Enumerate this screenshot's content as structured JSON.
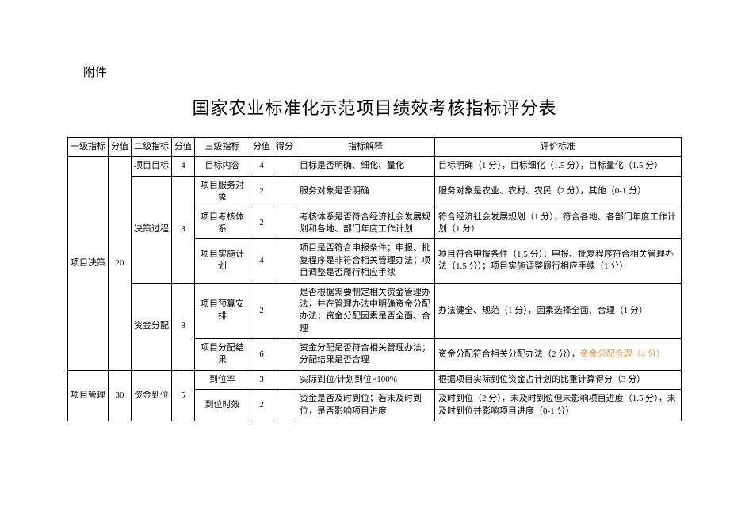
{
  "attachment_label": "附件",
  "title": "国家农业标准化示范项目绩效考核指标评分表",
  "headers": {
    "l1": "一级指标",
    "s1": "分值",
    "l2": "二级指标",
    "s2": "分值",
    "l3": "三级指标",
    "s3": "分值",
    "score": "得分",
    "desc": "指标解释",
    "eval": "评价标准"
  },
  "rows": [
    {
      "l1": "项目决策",
      "s1": "20",
      "l2": "项目目标",
      "s2": "4",
      "l3": "目标内容",
      "s3": "4",
      "desc": "目标是否明确、细化、量化",
      "eval": "目标明确（1 分），目标细化（1.5 分），目标量化（1.5 分）"
    },
    {
      "l2": "决策过程",
      "s2": "8",
      "l3": "项目服务对象",
      "s3": "2",
      "desc": "服务对象是否明确",
      "eval": "服务对象是农业、农村、农民（2 分），其他（0-1 分）"
    },
    {
      "l3": "项目考核体系",
      "s3": "2",
      "desc": "考核体系是否符合经济社会发展规划和各地、部门年度工作计划",
      "eval": "符合经济社会发展规划（1 分），符合各地、各部门年度工作计划（1 分）"
    },
    {
      "l3": "项目实施计划",
      "s3": "4",
      "desc": "项目是否符合申报条件；申报、批复程序是非符合相关管理办法；项目调整是否履行相应手续",
      "eval": "项目符合申报条件（1.5 分）；申报、批复程序符合相关管理办法（1.5 分）；项目实施调整履行相应手续（1 分）"
    },
    {
      "l2": "资金分配",
      "s2": "8",
      "l3": "项目预算安排",
      "s3": "2",
      "desc": "是否根据需要制定相关资金管理办法，并在管理办法中明确资金分配办法；资金分配因素是否全面、合理",
      "eval": "办法健全、规范（1 分），因素选择全面、合理（1 分）"
    },
    {
      "l3": "项目分配结果",
      "s3": "6",
      "desc": "资金分配是否符合相关管理办法；分配结果是否合理",
      "eval_prefix": "资金分配符合相关分配办法（2 分），",
      "eval_highlight": "资金分配合理（4 分）"
    },
    {
      "l1": "项目管理",
      "s1": "30",
      "l2": "资金到位",
      "s2": "5",
      "l3": "到位率",
      "s3": "3",
      "desc": "实际到位/计划到位×100%",
      "eval": "根据项目实际到位资金占计划的比重计算得分（3 分）"
    },
    {
      "l3": "到位时效",
      "s3": "2",
      "desc": "资金是否及时到位；若未及时到位，是否影响项目进度",
      "eval": "及时到位（2 分），未及时到位但未影响项目进度（1.5 分），未及时到位并影响项目进度（0-1 分）"
    }
  ]
}
